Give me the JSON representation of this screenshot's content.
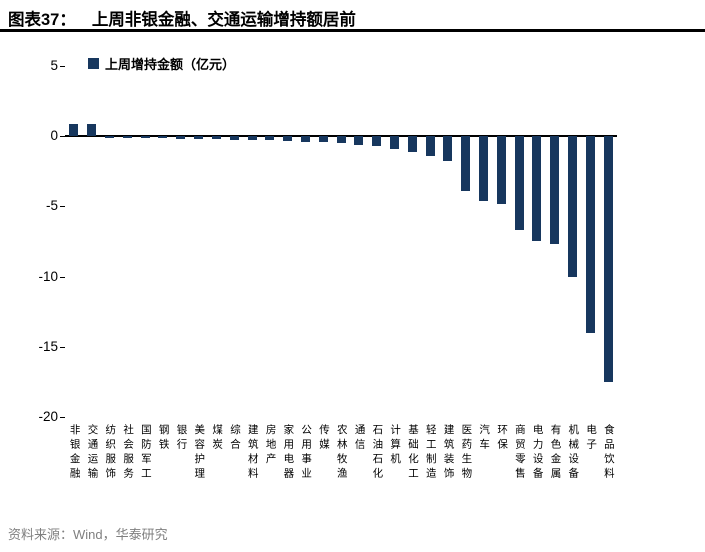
{
  "header": {
    "figure_label": "图表37：",
    "title": "上周非银金融、交通运输增持额居前"
  },
  "legend": {
    "label": "上周增持金额（亿元）"
  },
  "footer": {
    "source_text": "资料来源：Wind，华泰研究"
  },
  "colors": {
    "bar": "#17375E",
    "axis": "#000000",
    "source_text": "#7F7F7F"
  },
  "chart_data": {
    "type": "bar",
    "title": "上周非银金融、交通运输增持额居前",
    "legend": [
      "上周增持金额（亿元）"
    ],
    "legend_position": "top-left",
    "xlabel": "",
    "ylabel": "",
    "ylim": [
      -20,
      5
    ],
    "yticks": [
      5,
      0,
      -5,
      -10,
      -15,
      -20
    ],
    "grid": false,
    "bar_color": "#17375E",
    "categories": [
      "非银金融",
      "交通运输",
      "纺织服饰",
      "社会服务",
      "国防军工",
      "钢铁",
      "银行",
      "美容护理",
      "煤炭",
      "综合",
      "建筑材料",
      "房地产",
      "家用电器",
      "公用事业",
      "传媒",
      "农林牧渔",
      "通信",
      "石油石化",
      "计算机",
      "基础化工",
      "轻工制造",
      "建筑装饰",
      "医药生物",
      "汽车",
      "环保",
      "商贸零售",
      "电力设备",
      "有色金属",
      "机械设备",
      "电子",
      "食品饮料"
    ],
    "values": [
      0.9,
      0.9,
      -0.1,
      -0.1,
      -0.15,
      -0.15,
      -0.2,
      -0.2,
      -0.2,
      -0.25,
      -0.3,
      -0.3,
      -0.35,
      -0.4,
      -0.45,
      -0.5,
      -0.6,
      -0.7,
      -0.9,
      -1.1,
      -1.4,
      -1.8,
      -3.9,
      -4.6,
      -4.8,
      -6.7,
      -7.5,
      -7.7,
      -10.0,
      -14.0,
      -17.5
    ]
  }
}
